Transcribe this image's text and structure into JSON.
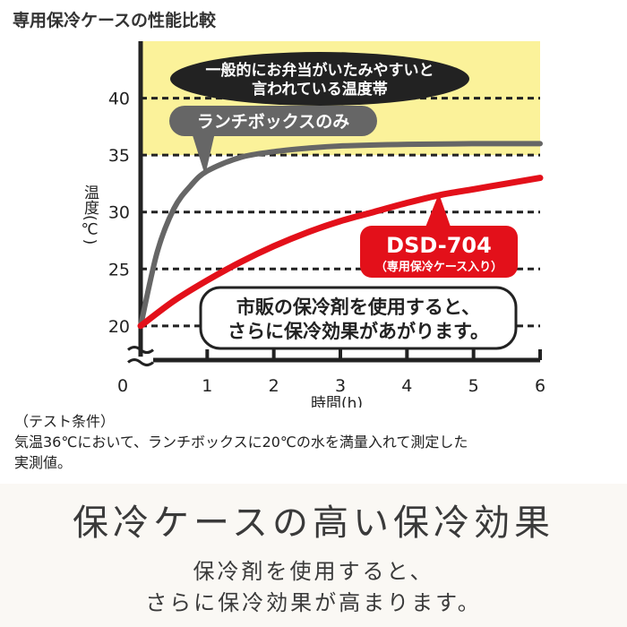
{
  "page_title": "専用保冷ケースの性能比較",
  "colors": {
    "danger_band": "#fbf29a",
    "grid": "#222222",
    "axis": "#222222",
    "lunchbox_only": "#666666",
    "dsd704": "#e3101a",
    "callout_dark": "#222222",
    "badge_gray": "#666666",
    "badge_red": "#e3101a"
  },
  "chart_data": {
    "type": "line",
    "xlabel": "時間(h)",
    "ylabel": "温度(℃)",
    "xlim": [
      0,
      6
    ],
    "ylim": [
      17,
      45
    ],
    "x_ticks": [
      0,
      1,
      2,
      3,
      4,
      5,
      6
    ],
    "y_ticks": [
      20,
      25,
      30,
      35,
      40
    ],
    "axis_break_marker": true,
    "grid": "dashed horizontal at y ticks",
    "shaded_region": {
      "y_from": 35,
      "y_to": 45,
      "label": "一般的にお弁当がいたみやすいと言われている温度帯"
    },
    "series": [
      {
        "name": "ランチボックスのみ",
        "color_key": "lunchbox_only",
        "x": [
          0,
          0.25,
          0.5,
          0.75,
          1,
          1.5,
          2,
          2.5,
          3,
          4,
          5,
          6
        ],
        "y": [
          20,
          26.5,
          30.3,
          32.3,
          33.6,
          34.8,
          35.3,
          35.6,
          35.8,
          35.95,
          36,
          36
        ]
      },
      {
        "name": "DSD-704",
        "subtitle": "（専用保冷ケース入り）",
        "color_key": "dsd704",
        "x": [
          0,
          0.5,
          1,
          1.5,
          2,
          2.5,
          3,
          3.5,
          4,
          4.5,
          5,
          5.5,
          6
        ],
        "y": [
          20,
          22.2,
          24,
          25.6,
          27,
          28.2,
          29.2,
          30,
          30.8,
          31.5,
          32,
          32.5,
          33
        ]
      }
    ],
    "annotations": {
      "danger_line1": "一般的にお弁当がいたみやすいと",
      "danger_line2": "言われている温度帯",
      "lunchbox_label": "ランチボックスのみ",
      "dsd_label": "DSD-704",
      "dsd_sublabel": "（専用保冷ケース入り）",
      "effect_line1": "市販の保冷剤を使用すると、",
      "effect_line2": "さらに保冷効果があがります。"
    }
  },
  "footnote": {
    "heading": "（テスト条件）",
    "line1": "気温36℃において、ランチボックスに20℃の水を満量入れて測定した",
    "line2": "実測値。"
  },
  "banner": {
    "headline": "保冷ケースの高い保冷効果",
    "sub1": "保冷剤を使用すると、",
    "sub2": "さらに保冷効果が高まります。"
  }
}
